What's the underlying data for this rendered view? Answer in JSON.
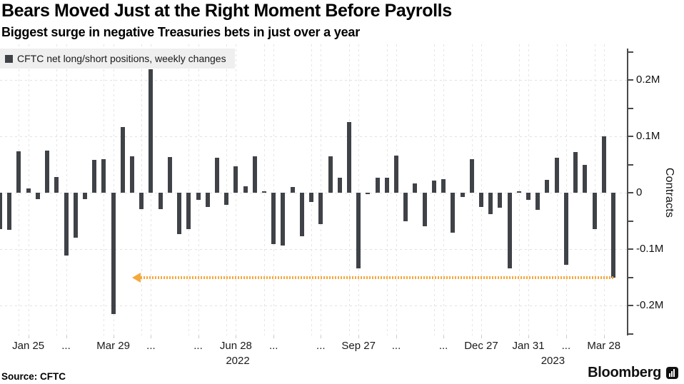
{
  "header": {
    "title": "Bears Moved Just at the Right Moment Before Payrolls",
    "subtitle": "Biggest surge in negative Treasuries bets in just over a year"
  },
  "legend": {
    "label": "CFTC net long/short positions, weekly changes"
  },
  "chart_data": {
    "type": "bar",
    "title": "Bears Moved Just at the Right Moment Before Payrolls",
    "subtitle": "Biggest surge in negative Treasuries bets in just over a year",
    "series_name": "CFTC net long/short positions, weekly changes",
    "unit": "millions of contracts",
    "ylabel": "Contracts",
    "ylim": [
      -0.26,
      0.26
    ],
    "grid": true,
    "values": [
      -0.065,
      -0.066,
      0.073,
      0.008,
      -0.011,
      0.075,
      0.028,
      -0.111,
      -0.08,
      -0.012,
      0.058,
      0.059,
      -0.215,
      0.117,
      0.064,
      -0.029,
      0.219,
      -0.029,
      0.063,
      -0.073,
      -0.065,
      -0.013,
      -0.025,
      0.062,
      -0.022,
      0.047,
      0.011,
      0.064,
      0.002,
      -0.091,
      -0.094,
      0.01,
      -0.077,
      -0.017,
      -0.056,
      0.064,
      0.026,
      0.125,
      -0.134,
      -0.003,
      0.026,
      0.027,
      0.066,
      -0.05,
      0.016,
      -0.059,
      0.022,
      0.024,
      -0.071,
      -0.008,
      0.06,
      -0.025,
      -0.038,
      -0.027,
      -0.134,
      0.003,
      -0.013,
      -0.03,
      0.023,
      0.062,
      -0.128,
      0.072,
      0.049,
      -0.064,
      0.1,
      -0.15
    ],
    "y_ticks": [
      {
        "value": 0.2,
        "label": "0.2M"
      },
      {
        "value": 0.1,
        "label": "0.1M"
      },
      {
        "value": 0,
        "label": "0"
      },
      {
        "value": -0.1,
        "label": "-0.1M"
      },
      {
        "value": -0.2,
        "label": "-0.2M"
      }
    ],
    "y_minor_tick_step": 0.05,
    "x_ticks": [
      {
        "index": 3,
        "label": "Jan 25"
      },
      {
        "index": 7,
        "label": "..."
      },
      {
        "index": 12,
        "label": "Mar 29"
      },
      {
        "index": 16,
        "label": "..."
      },
      {
        "index": 21,
        "label": "..."
      },
      {
        "index": 25,
        "label": "Jun 28"
      },
      {
        "index": 29,
        "label": "..."
      },
      {
        "index": 34,
        "label": "..."
      },
      {
        "index": 38,
        "label": "Sep 27"
      },
      {
        "index": 42,
        "label": "..."
      },
      {
        "index": 47,
        "label": "..."
      },
      {
        "index": 51,
        "label": "Dec 27"
      },
      {
        "index": 56,
        "label": "Jan 31"
      },
      {
        "index": 60,
        "label": "..."
      },
      {
        "index": 64,
        "label": "Mar 28"
      }
    ],
    "year_labels": [
      {
        "index": 25.2,
        "label": "2022"
      },
      {
        "index": 58.6,
        "label": "2023"
      }
    ],
    "annotation": {
      "type": "dotted-arrow-line",
      "level": -0.15,
      "from_index": 14,
      "to_index": 65,
      "direction": "left"
    }
  },
  "footer": {
    "source": "Source: CFTC",
    "brand": "Bloomberg"
  },
  "colors": {
    "bar": "#3F4247",
    "grid": "#E2E2E2",
    "axis": "#4A4A4A",
    "annotation": "#F5A83C",
    "legend_bg": "#EFEFEF",
    "text": "#1A1A1A"
  }
}
